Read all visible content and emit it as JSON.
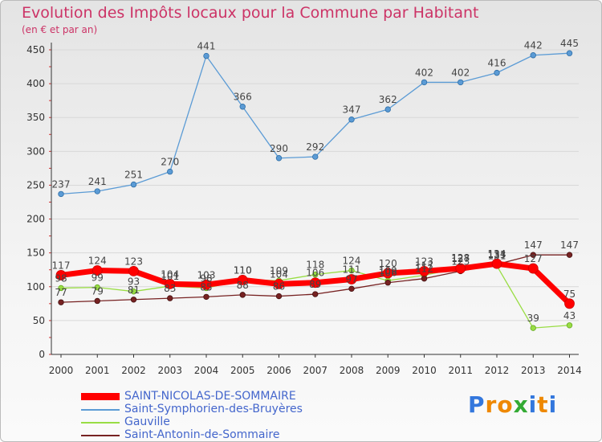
{
  "chart_data": {
    "type": "line",
    "title": "Evolution des Impôts locaux pour la Commune par Habitant",
    "subtitle": "(en € et par an)",
    "x": [
      "2000",
      "2001",
      "2002",
      "2003",
      "2004",
      "2005",
      "2006",
      "2007",
      "2008",
      "2009",
      "2010",
      "2011",
      "2012",
      "2013",
      "2014"
    ],
    "ylim": [
      0,
      450
    ],
    "yticks": [
      0,
      50,
      100,
      150,
      200,
      250,
      300,
      350,
      400,
      450
    ],
    "grid": "horizontal",
    "series": [
      {
        "name": "SAINT-NICOLAS-DE-SOMMAIRE",
        "color": "#ff0000",
        "values": [
          117,
          124,
          123,
          104,
          103,
          110,
          104,
          106,
          111,
          120,
          123,
          127,
          134,
          127,
          75
        ]
      },
      {
        "name": "Saint-Symphorien-des-Bruyères",
        "color": "#5b9bd5",
        "values": [
          237,
          241,
          251,
          270,
          441,
          366,
          290,
          292,
          347,
          362,
          402,
          402,
          416,
          442,
          445
        ]
      },
      {
        "name": "Gauville",
        "color": "#99dd44",
        "values": [
          98,
          99,
          93,
          101,
          98,
          110,
          109,
          118,
          124,
          109,
          117,
          128,
          131,
          39,
          43
        ]
      },
      {
        "name": "Saint-Antonin-de-Sommaire",
        "color": "#772222",
        "values": [
          77,
          79,
          81,
          83,
          85,
          88,
          86,
          89,
          97,
          106,
          112,
          123,
          133,
          147,
          147
        ]
      }
    ]
  },
  "legend": [
    {
      "label": "SAINT-NICOLAS-DE-SOMMAIRE",
      "color": "#ff0000",
      "weight": "thick"
    },
    {
      "label": "Saint-Symphorien-des-Bruyères",
      "color": "#5b9bd5",
      "weight": "thin"
    },
    {
      "label": "Gauville",
      "color": "#99dd44",
      "weight": "thin"
    },
    {
      "label": "Saint-Antonin-de-Sommaire",
      "color": "#772222",
      "weight": "thin"
    }
  ],
  "brand": {
    "letters": [
      "P",
      "r",
      "o",
      "x",
      "i",
      "t",
      "i"
    ],
    "colors": [
      "#3377dd",
      "#ee8800",
      "#ee8800",
      "#33aa33",
      "#3377dd",
      "#ee8800",
      "#3377dd"
    ]
  }
}
